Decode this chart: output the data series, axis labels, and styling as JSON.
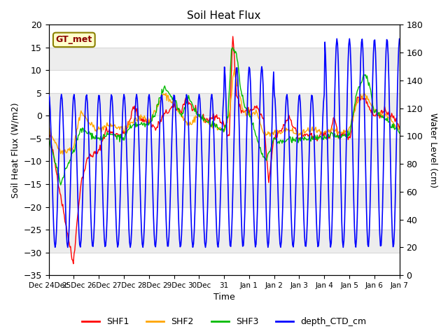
{
  "title": "Soil Heat Flux",
  "ylabel_left": "Soil Heat Flux (W/m2)",
  "ylabel_right": "Water Level (cm)",
  "xlabel": "Time",
  "ylim_left": [
    -35,
    20
  ],
  "ylim_right": [
    0,
    180
  ],
  "annotation_text": "GT_met",
  "annotation_color": "#8B0000",
  "annotation_bg": "#FFFFCC",
  "annotation_edge": "#8B8000",
  "bg_stripe_color": "#DCDCDC",
  "colors": {
    "SHF1": "#FF0000",
    "SHF2": "#FFA500",
    "SHF3": "#00BB00",
    "depth_CTD_cm": "#0000FF"
  },
  "legend_labels": [
    "SHF1",
    "SHF2",
    "SHF3",
    "depth_CTD_cm"
  ],
  "x_tick_labels": [
    "Dec 24Dec",
    "25Dec",
    "26Dec",
    "27Dec",
    "28Dec",
    "29Dec",
    "30Dec",
    "31",
    "Jan 1",
    "Jan 2",
    "Jan 3",
    "Jan 4",
    "Jan 5",
    "Jan 6",
    "Jan 7"
  ],
  "n_points": 500
}
